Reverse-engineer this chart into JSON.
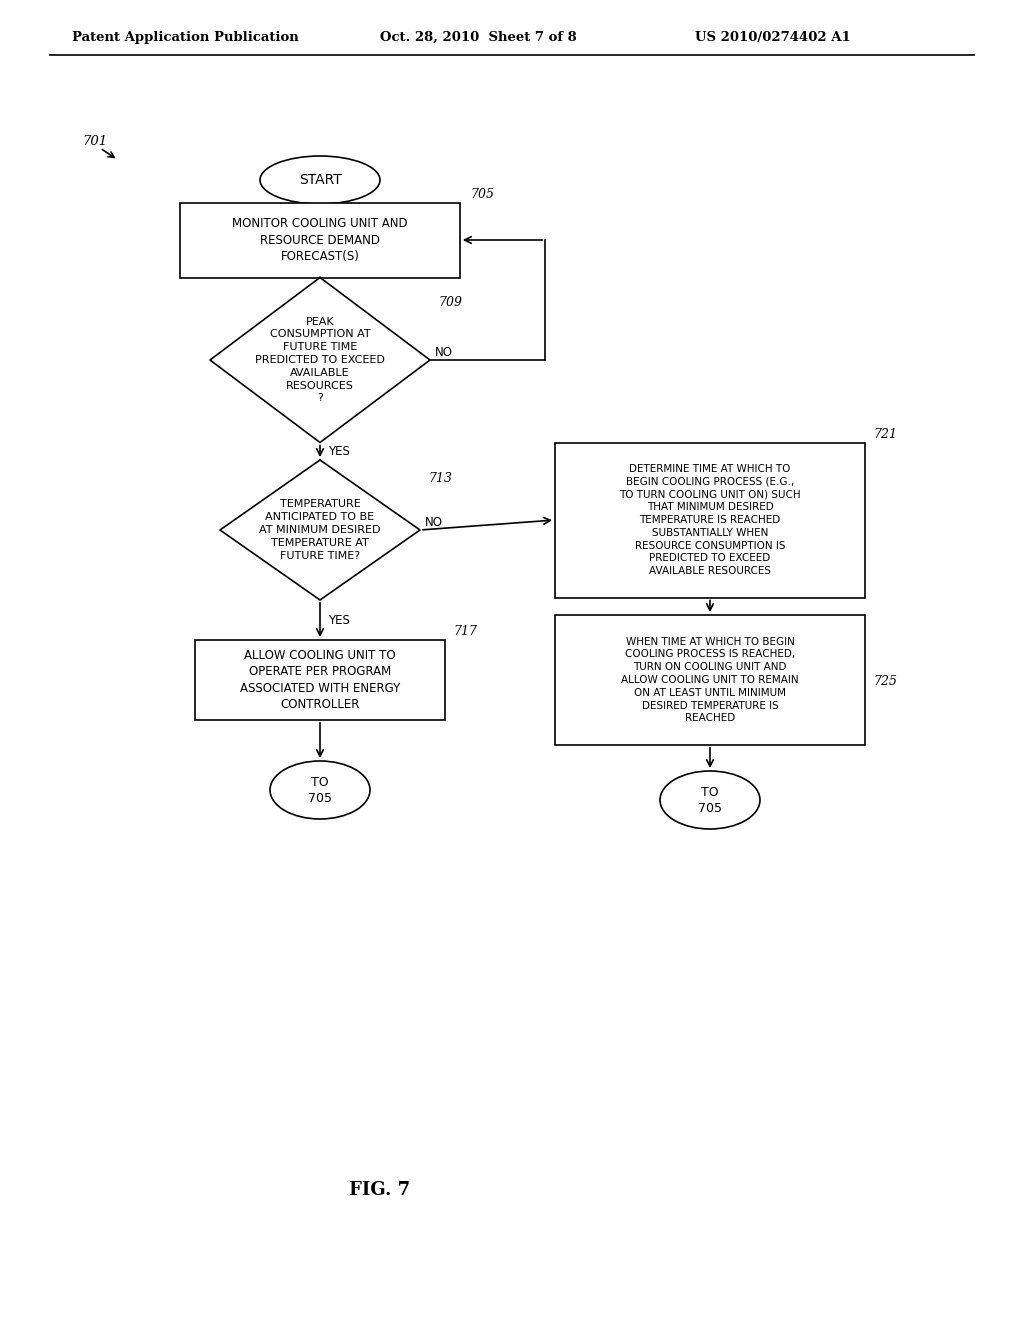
{
  "bg_color": "#ffffff",
  "header_left": "Patent Application Publication",
  "header_mid": "Oct. 28, 2010  Sheet 7 of 8",
  "header_right": "US 2010/0274402 A1",
  "fig_label": "FIG. 7",
  "diagram_label": "701"
}
